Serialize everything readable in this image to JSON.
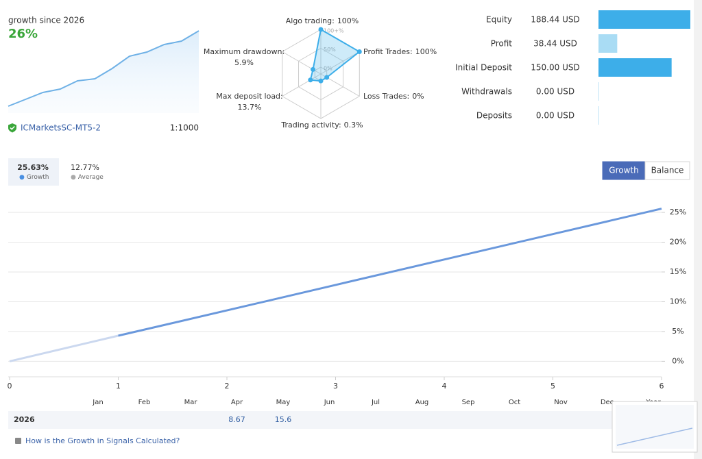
{
  "summary": {
    "label": "growth since 2026",
    "value": "26%",
    "broker": "ICMarketsSC-MT5-2",
    "leverage": "1:1000"
  },
  "sparkline": {
    "type": "area",
    "color": "#6fb1e6",
    "values": [
      0,
      10,
      20,
      25,
      37,
      40,
      55,
      73,
      79,
      90,
      95,
      110
    ]
  },
  "radar": {
    "type": "radar",
    "color": "#3daee9",
    "rlim": [
      0,
      100
    ],
    "ticks": [
      {
        "value": 100,
        "label": "100+%"
      },
      {
        "value": 50,
        "label": "50%"
      },
      {
        "value": 0,
        "label": "0%"
      }
    ],
    "axes": [
      {
        "name": "Algo trading:",
        "value": 100,
        "value_label": "100%"
      },
      {
        "name": "Profit Trades:",
        "value": 100,
        "value_label": "100%"
      },
      {
        "name": "Loss Trades:",
        "value": 0,
        "value_label": "0%"
      },
      {
        "name": "Trading activity:",
        "value": 0.3,
        "value_label": "0.3%"
      },
      {
        "name": "Max deposit load:",
        "value": 13.7,
        "value_label": "13.7%"
      },
      {
        "name": "Maximum drawdown:",
        "value": 5.9,
        "value_label": "5.9%"
      }
    ]
  },
  "account": {
    "type": "bar",
    "rows": [
      {
        "label": "Equity",
        "value": 188.44,
        "value_label": "188.44 USD",
        "color": "#3daee9"
      },
      {
        "label": "Profit",
        "value": 38.44,
        "value_label": "38.44 USD",
        "color": "#a9dcf4"
      },
      {
        "label": "Initial Deposit",
        "value": 150.0,
        "value_label": "150.00 USD",
        "color": "#3daee9"
      },
      {
        "label": "Withdrawals",
        "value": 0,
        "value_label": "0.00 USD",
        "color": "#bfe3f6"
      },
      {
        "label": "Deposits",
        "value": 0,
        "value_label": "0.00 USD",
        "color": "#bfe3f6"
      }
    ]
  },
  "stats": [
    {
      "value": "25.63%",
      "label": "Growth",
      "color": "#4a90e2"
    },
    {
      "value": "12.77%",
      "label": "Average",
      "color": "#aaaaaa"
    }
  ],
  "buttons": [
    "Growth",
    "Balance"
  ],
  "growth_chart": {
    "type": "line",
    "x": [
      0,
      1,
      2,
      3,
      4,
      5,
      6
    ],
    "series": [
      {
        "color": "#cbd8ef",
        "values": [
          0,
          4.3,
          null,
          null,
          null,
          null,
          null
        ]
      },
      {
        "color": "#6a98dc",
        "values": [
          null,
          4.3,
          8.55,
          12.82,
          17.09,
          21.36,
          25.63
        ]
      }
    ],
    "xlim": [
      0,
      6
    ],
    "xticks": [
      0,
      1,
      2,
      3,
      4,
      5,
      6
    ],
    "ylim": [
      -2.6,
      26.5
    ],
    "yticks": [
      {
        "value": 0,
        "label": "0%"
      },
      {
        "value": 5,
        "label": "5%"
      },
      {
        "value": 10,
        "label": "10%"
      },
      {
        "value": 15,
        "label": "15%"
      },
      {
        "value": 20,
        "label": "20%"
      },
      {
        "value": 25,
        "label": "25%"
      }
    ],
    "grid": true
  },
  "months": [
    "Jan",
    "Feb",
    "Mar",
    "Apr",
    "May",
    "Jun",
    "Jul",
    "Aug",
    "Sep",
    "Oct",
    "Nov",
    "Dec",
    "Year"
  ],
  "table": {
    "year": "2026",
    "cells": [
      null,
      null,
      null,
      8.67,
      15.6,
      null,
      null,
      null,
      null,
      null,
      null,
      null,
      null
    ]
  },
  "footer": {
    "link": "How is the Growth in Signals Calculated?"
  }
}
